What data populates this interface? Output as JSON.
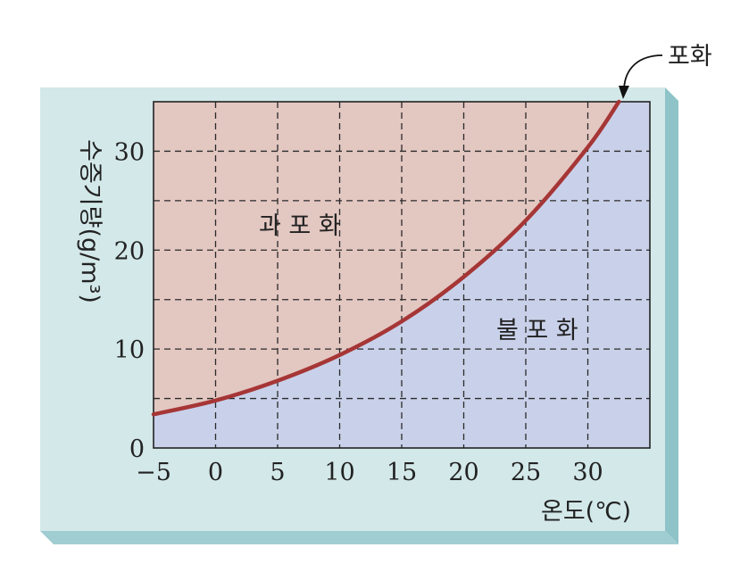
{
  "chart_data": {
    "type": "line",
    "xlabel": "온도(℃)",
    "ylabel": "수증기량(g/m³)",
    "xlim": [
      -5,
      35
    ],
    "ylim": [
      0,
      35
    ],
    "x_ticks": [
      "−5",
      "0",
      "5",
      "10",
      "15",
      "20",
      "25",
      "30"
    ],
    "y_ticks": [
      "0",
      "10",
      "20",
      "30"
    ],
    "grid": true,
    "series": [
      {
        "x": [
          -5,
          0,
          5,
          10,
          15,
          20,
          25,
          30,
          32.5
        ],
        "y": [
          3.4,
          4.8,
          6.8,
          9.4,
          12.8,
          17.3,
          23.0,
          30.4,
          35.0
        ]
      }
    ],
    "annotations": {
      "curve_label": "포화",
      "above_curve": "과 포 화",
      "below_curve": "불 포 화"
    },
    "colors": {
      "background": "#d3e8e9",
      "supersaturated_fill": "#e3c7c1",
      "unsaturated_fill": "#c9d1ea",
      "curve": "#a63636"
    }
  }
}
